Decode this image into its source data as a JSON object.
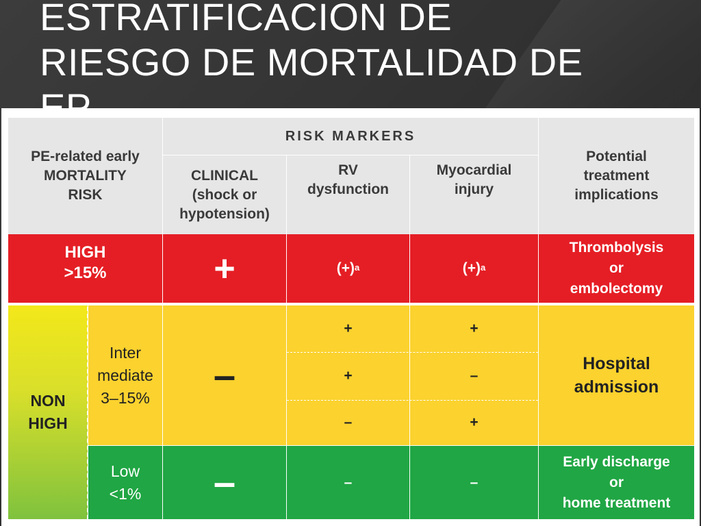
{
  "slide": {
    "title": "ESTRATIFICACION DE\nRIESGO DE MORTALIDAD DE\nEP"
  },
  "table": {
    "header": {
      "risk_col": "PE-related early\nMORTALITY\nRISK",
      "group": "RISK MARKERS",
      "clinical": "CLINICAL\n(shock or\nhypotension)",
      "rv": "RV\ndysfunction",
      "myo": "Myocardial\ninjury",
      "implications": "Potential\ntreatment\nimplications"
    },
    "high": {
      "label": "HIGH\n>15%",
      "clinical": "+",
      "rv": "(+)",
      "rv_sup": "a",
      "myo": "(+)",
      "myo_sup": "a",
      "implication": "Thrombolysis\nor\nembolectomy"
    },
    "non_high": {
      "label": "NON\nHIGH",
      "intermediate": {
        "label": "Inter\nmediate\n3–15%",
        "clinical": "–",
        "rows": [
          {
            "rv": "+",
            "myo": "+"
          },
          {
            "rv": "+",
            "myo": "–"
          },
          {
            "rv": "–",
            "myo": "+"
          }
        ],
        "implication": "Hospital\nadmission"
      },
      "low": {
        "label": "Low\n<1%",
        "clinical": "–",
        "rv": "–",
        "myo": "–",
        "implication": "Early discharge\nor\nhome treatment"
      }
    },
    "colors": {
      "header": "#e6e6e6",
      "high": "#e51e25",
      "intermediate": "#fbd22e",
      "low": "#20a644"
    }
  }
}
